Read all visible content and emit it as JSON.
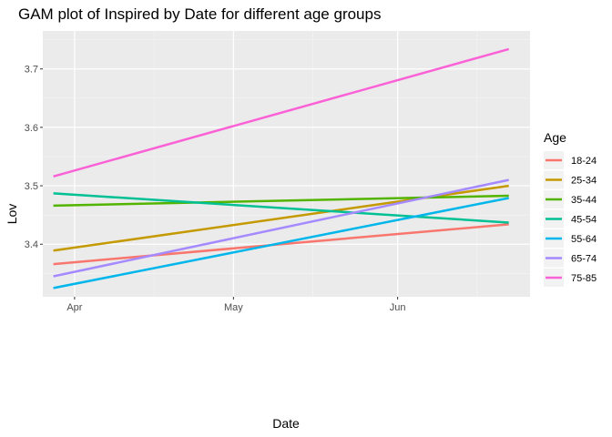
{
  "chart_data": {
    "type": "line",
    "title": "GAM plot of Inspired by Date for different age groups",
    "xlabel": "Date",
    "ylabel": "Lov",
    "x_ticks": [
      "Apr",
      "May",
      "Jun"
    ],
    "y_ticks": [
      "3.4",
      "3.5",
      "3.6",
      "3.7"
    ],
    "x_range": [
      "2023-03-26",
      "2023-06-26"
    ],
    "ylim": [
      3.31,
      3.765
    ],
    "grid": true,
    "legend": {
      "title": "Age",
      "position": "right"
    },
    "x": [
      "2023-03-28",
      "2023-06-22"
    ],
    "series": [
      {
        "name": "18-24",
        "color": "#F8766D",
        "values": [
          3.366,
          3.434
        ]
      },
      {
        "name": "25-34",
        "color": "#C49A00",
        "values": [
          3.389,
          3.5
        ]
      },
      {
        "name": "35-44",
        "color": "#53B400",
        "values": [
          3.466,
          3.483
        ]
      },
      {
        "name": "45-54",
        "color": "#00C094",
        "values": [
          3.487,
          3.437
        ]
      },
      {
        "name": "55-64",
        "color": "#00B6EB",
        "values": [
          3.325,
          3.479
        ]
      },
      {
        "name": "65-74",
        "color": "#A58AFF",
        "values": [
          3.345,
          3.51
        ]
      },
      {
        "name": "75-85",
        "color": "#FB61D7",
        "values": [
          3.516,
          3.734
        ]
      }
    ]
  }
}
